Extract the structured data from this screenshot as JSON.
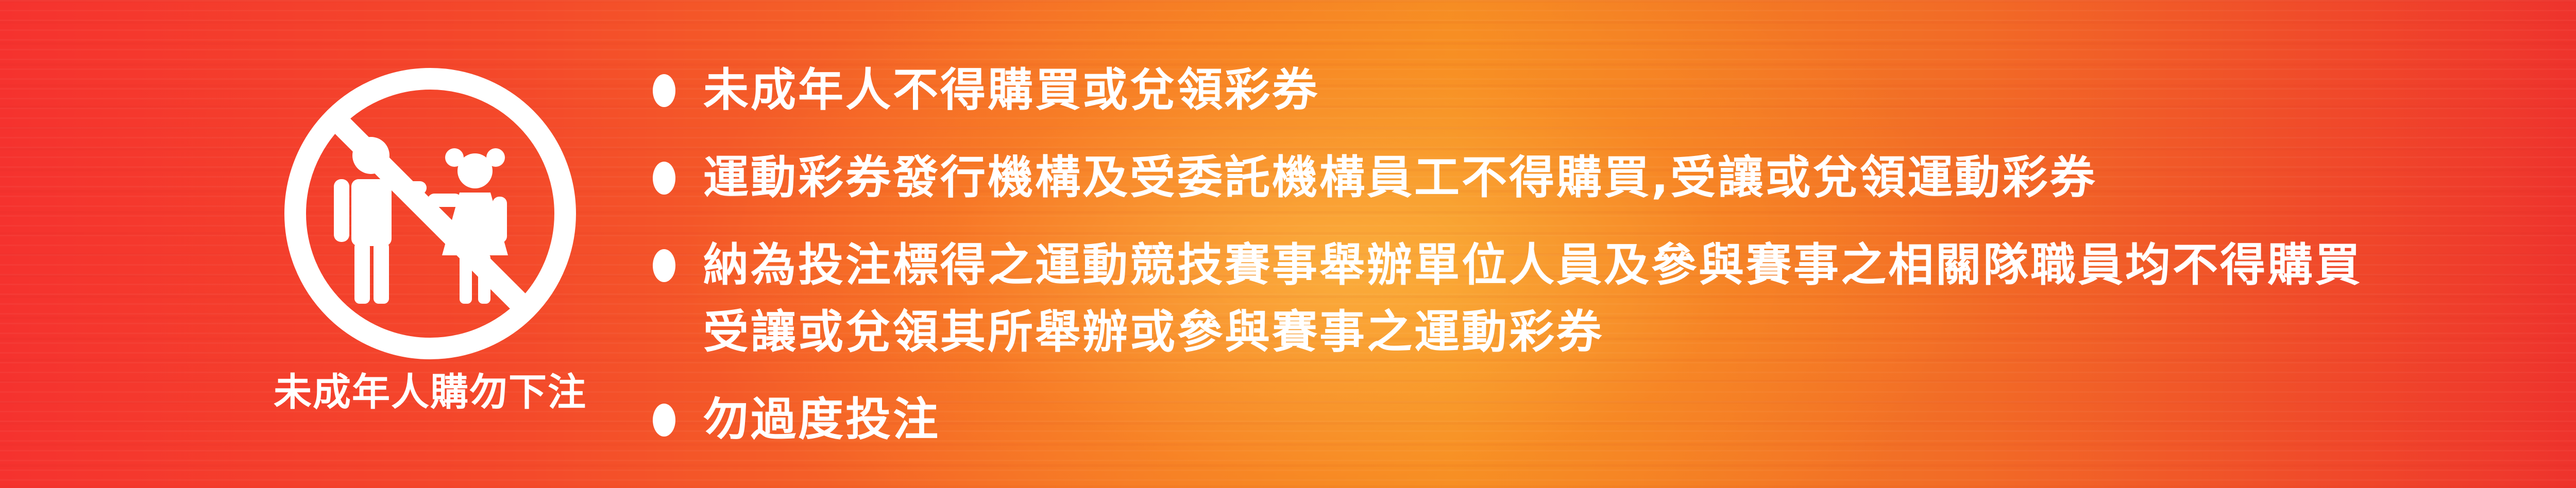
{
  "banner": {
    "caption": "未成年人購勿下注",
    "icon": "no-children-icon",
    "colors": {
      "background_left": "#f5322e",
      "background_center": "#f58a22",
      "background_right": "#ee2d2d",
      "foreground": "#ffffff"
    },
    "rules": [
      {
        "lines": [
          "未成年人不得購買或兌領彩券"
        ]
      },
      {
        "lines": [
          "運動彩券發行機構及受委託機構員工不得購買,受讓或兌領運動彩券"
        ]
      },
      {
        "lines": [
          "納為投注標得之運動競技賽事舉辦單位人員及參與賽事之相關隊職員均不得購買",
          "受讓或兌領其所舉辦或參與賽事之運動彩券"
        ]
      },
      {
        "lines": [
          "勿過度投注"
        ]
      }
    ]
  }
}
